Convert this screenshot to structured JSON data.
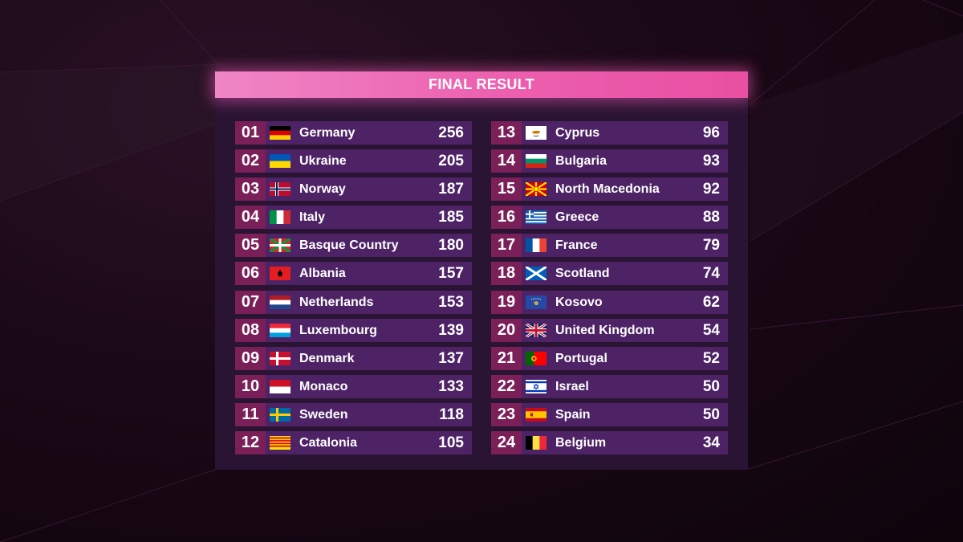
{
  "header": {
    "title": "FINAL RESULT"
  },
  "colors": {
    "title_bar": "#ec5fae",
    "row_bg": "#4e2366",
    "rank_bg": "#7b1f58",
    "panel_bg": "#2a1433",
    "text": "#ffffff"
  },
  "results": [
    {
      "rank": "01",
      "country": "Germany",
      "points": "256",
      "flag": "germany-flag-icon"
    },
    {
      "rank": "02",
      "country": "Ukraine",
      "points": "205",
      "flag": "ukraine-flag-icon"
    },
    {
      "rank": "03",
      "country": "Norway",
      "points": "187",
      "flag": "norway-flag-icon"
    },
    {
      "rank": "04",
      "country": "Italy",
      "points": "185",
      "flag": "italy-flag-icon"
    },
    {
      "rank": "05",
      "country": "Basque Country",
      "points": "180",
      "flag": "basque-flag-icon"
    },
    {
      "rank": "06",
      "country": "Albania",
      "points": "157",
      "flag": "albania-flag-icon"
    },
    {
      "rank": "07",
      "country": "Netherlands",
      "points": "153",
      "flag": "netherlands-flag-icon"
    },
    {
      "rank": "08",
      "country": "Luxembourg",
      "points": "139",
      "flag": "luxembourg-flag-icon"
    },
    {
      "rank": "09",
      "country": "Denmark",
      "points": "137",
      "flag": "denmark-flag-icon"
    },
    {
      "rank": "10",
      "country": "Monaco",
      "points": "133",
      "flag": "monaco-flag-icon"
    },
    {
      "rank": "11",
      "country": "Sweden",
      "points": "118",
      "flag": "sweden-flag-icon"
    },
    {
      "rank": "12",
      "country": "Catalonia",
      "points": "105",
      "flag": "catalonia-flag-icon"
    },
    {
      "rank": "13",
      "country": "Cyprus",
      "points": "96",
      "flag": "cyprus-flag-icon"
    },
    {
      "rank": "14",
      "country": "Bulgaria",
      "points": "93",
      "flag": "bulgaria-flag-icon"
    },
    {
      "rank": "15",
      "country": "North Macedonia",
      "points": "92",
      "flag": "north-macedonia-flag-icon"
    },
    {
      "rank": "16",
      "country": "Greece",
      "points": "88",
      "flag": "greece-flag-icon"
    },
    {
      "rank": "17",
      "country": "France",
      "points": "79",
      "flag": "france-flag-icon"
    },
    {
      "rank": "18",
      "country": "Scotland",
      "points": "74",
      "flag": "scotland-flag-icon"
    },
    {
      "rank": "19",
      "country": "Kosovo",
      "points": "62",
      "flag": "kosovo-flag-icon"
    },
    {
      "rank": "20",
      "country": "United Kingdom",
      "points": "54",
      "flag": "united-kingdom-flag-icon"
    },
    {
      "rank": "21",
      "country": "Portugal",
      "points": "52",
      "flag": "portugal-flag-icon"
    },
    {
      "rank": "22",
      "country": "Israel",
      "points": "50",
      "flag": "israel-flag-icon"
    },
    {
      "rank": "23",
      "country": "Spain",
      "points": "50",
      "flag": "spain-flag-icon"
    },
    {
      "rank": "24",
      "country": "Belgium",
      "points": "34",
      "flag": "belgium-flag-icon"
    }
  ]
}
